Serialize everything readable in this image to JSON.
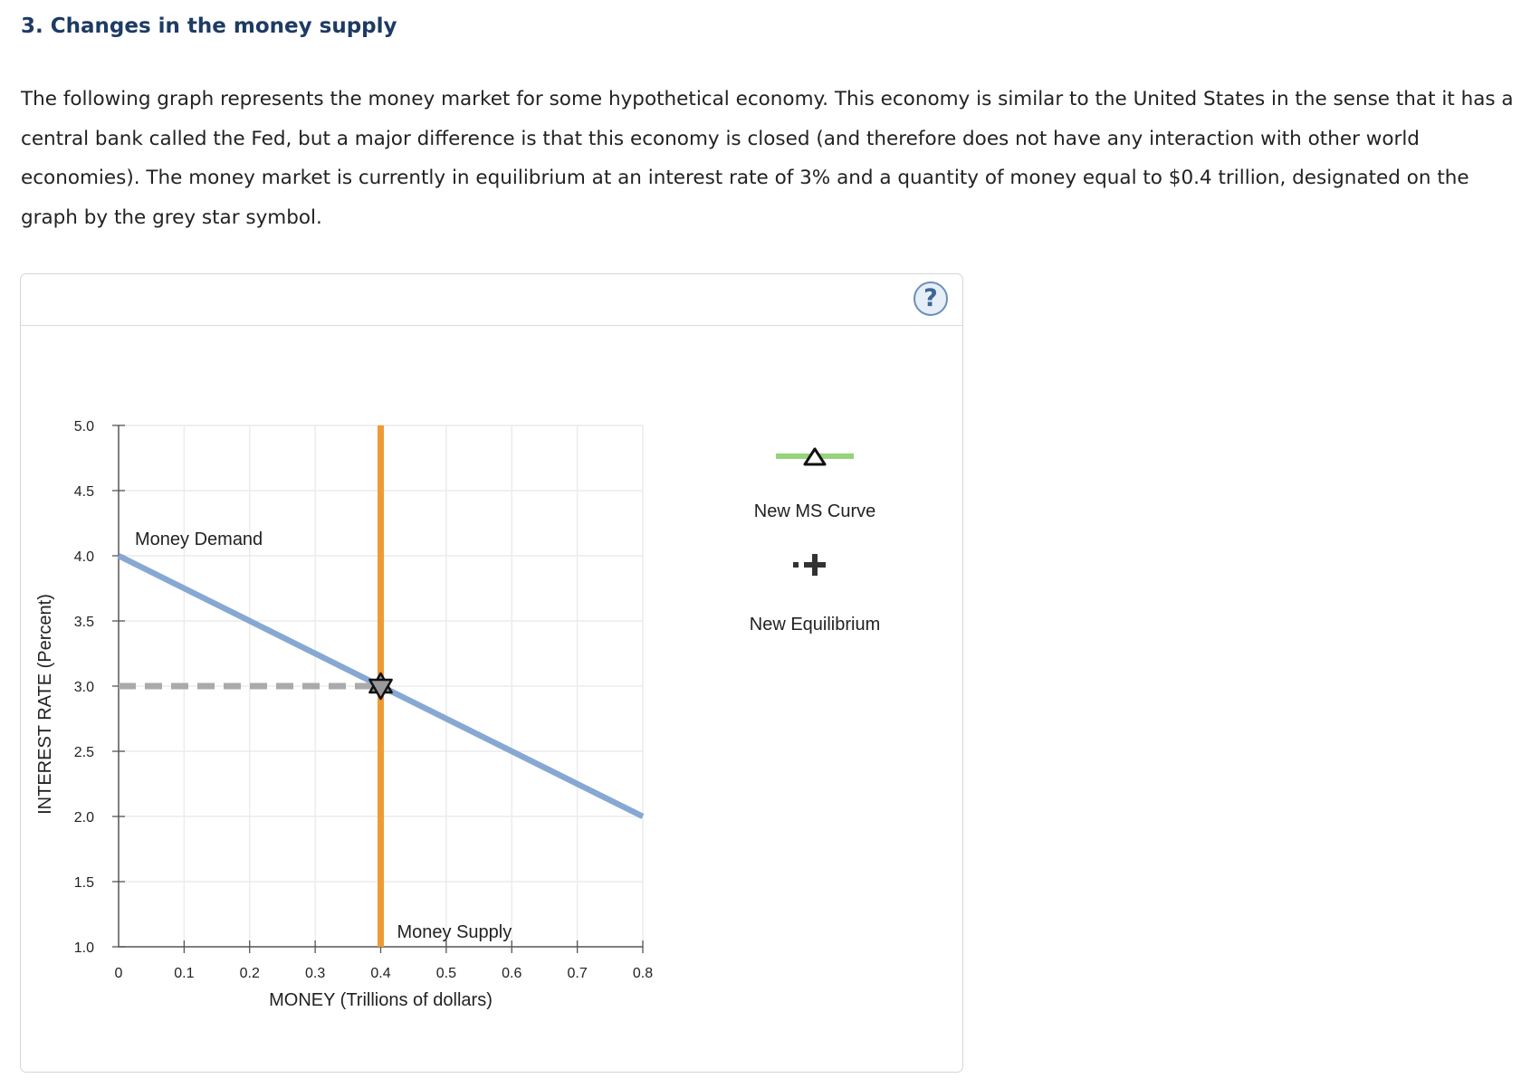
{
  "page": {
    "heading": "3. Changes in the money supply",
    "intro": "The following graph represents the money market for some hypothetical economy. This economy is similar to the United States in the sense that it has a central bank called the Fed, but a major difference is that this economy is closed (and therefore does not have any interaction with other world economies). The money market is currently in equilibrium at an interest rate of 3% and a quantity of money equal to $0.4 trillion, designated on the graph by the grey star symbol."
  },
  "panel": {
    "help_label": "?"
  },
  "chart_data": {
    "type": "line",
    "xlabel": "MONEY (Trillions of dollars)",
    "ylabel": "INTEREST RATE (Percent)",
    "xlim": [
      0,
      0.8
    ],
    "ylim": [
      1.0,
      5.0
    ],
    "x_ticks": [
      "0",
      "0.1",
      "0.2",
      "0.3",
      "0.4",
      "0.5",
      "0.6",
      "0.7",
      "0.8"
    ],
    "y_ticks": [
      "1.0",
      "1.5",
      "2.0",
      "2.5",
      "3.0",
      "3.5",
      "4.0",
      "4.5",
      "5.0"
    ],
    "grid": true,
    "series": [
      {
        "name": "Money Demand",
        "color": "#86a8d2",
        "x": [
          0,
          0.8
        ],
        "y": [
          4.0,
          2.0
        ]
      },
      {
        "name": "Money Supply",
        "color": "#ef9a35",
        "x": [
          0.4,
          0.4
        ],
        "y": [
          1.0,
          5.0
        ]
      }
    ],
    "equilibrium": {
      "x": 0.4,
      "y": 3.0,
      "marker": "grey-star",
      "color": "#999999"
    },
    "reference_line": {
      "from_x": 0,
      "to_x": 0.4,
      "y": 3.0,
      "style": "dashed",
      "color": "#aaaaaa"
    },
    "legend": {
      "placement": "right",
      "items": [
        {
          "label": "New MS Curve",
          "icon": "triangle-line-icon",
          "color": "#95d47a"
        },
        {
          "label": "New Equilibrium",
          "icon": "plus-marker-icon",
          "color": "#333333"
        }
      ]
    }
  }
}
